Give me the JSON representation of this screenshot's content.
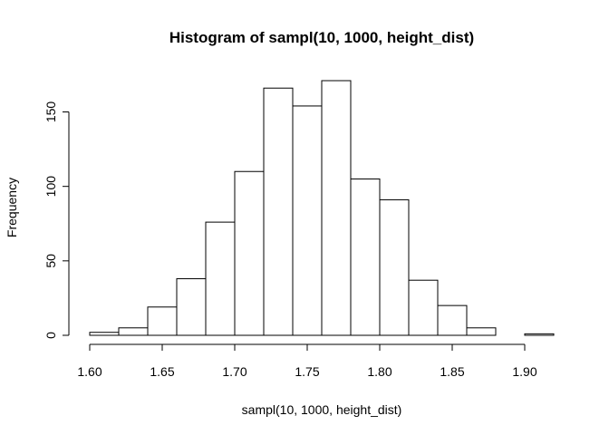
{
  "chart_data": {
    "type": "bar",
    "title": "Histogram of sampl(10, 1000, height_dist)",
    "xlabel": "sampl(10, 1000, height_dist)",
    "ylabel": "Frequency",
    "bins": [
      {
        "start": 1.6,
        "end": 1.62,
        "count": 2
      },
      {
        "start": 1.62,
        "end": 1.64,
        "count": 5
      },
      {
        "start": 1.64,
        "end": 1.66,
        "count": 19
      },
      {
        "start": 1.66,
        "end": 1.68,
        "count": 38
      },
      {
        "start": 1.68,
        "end": 1.7,
        "count": 76
      },
      {
        "start": 1.7,
        "end": 1.72,
        "count": 110
      },
      {
        "start": 1.72,
        "end": 1.74,
        "count": 166
      },
      {
        "start": 1.74,
        "end": 1.76,
        "count": 154
      },
      {
        "start": 1.76,
        "end": 1.78,
        "count": 171
      },
      {
        "start": 1.78,
        "end": 1.8,
        "count": 105
      },
      {
        "start": 1.8,
        "end": 1.82,
        "count": 91
      },
      {
        "start": 1.82,
        "end": 1.84,
        "count": 37
      },
      {
        "start": 1.84,
        "end": 1.86,
        "count": 20
      },
      {
        "start": 1.86,
        "end": 1.88,
        "count": 5
      },
      {
        "start": 1.88,
        "end": 1.9,
        "count": 0
      },
      {
        "start": 1.9,
        "end": 1.92,
        "count": 1
      }
    ],
    "xticks": [
      "1.60",
      "1.65",
      "1.70",
      "1.75",
      "1.80",
      "1.85",
      "1.90"
    ],
    "yticks": [
      "0",
      "50",
      "100",
      "150"
    ],
    "xlim": [
      1.6,
      1.92
    ],
    "ylim": [
      0,
      171
    ],
    "grid": false,
    "legend": "none"
  }
}
